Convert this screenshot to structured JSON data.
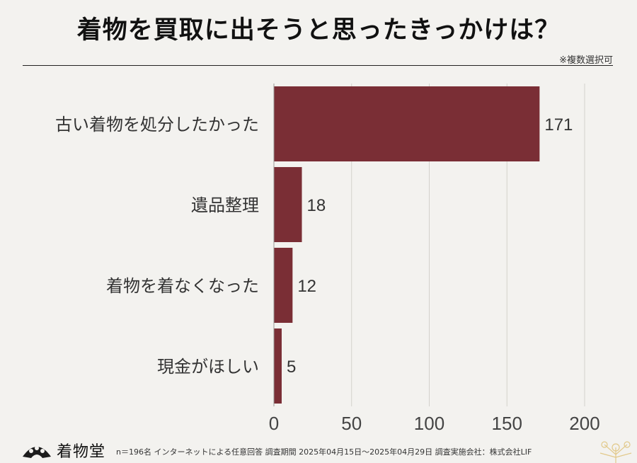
{
  "title": "着物を買取に出そうと思ったきっかけは？",
  "note": "※複数選択可",
  "chart_data": {
    "type": "bar",
    "orientation": "horizontal",
    "categories": [
      "古い着物を処分したかった",
      "遺品整理",
      "着物を着なくなった",
      "現金がほしい"
    ],
    "values": [
      171,
      18,
      12,
      5
    ],
    "xlim": [
      0,
      200
    ],
    "xticks": [
      0,
      50,
      100,
      150,
      200
    ],
    "grid": true,
    "bar_color": "#7a2e35"
  },
  "footer": {
    "logo_text": "着物堂",
    "footnote": "n＝196名 インターネットによる任意回答 調査期間 2025年04月15日〜2025年04月29日 調査実施会社：株式会社LIF"
  }
}
